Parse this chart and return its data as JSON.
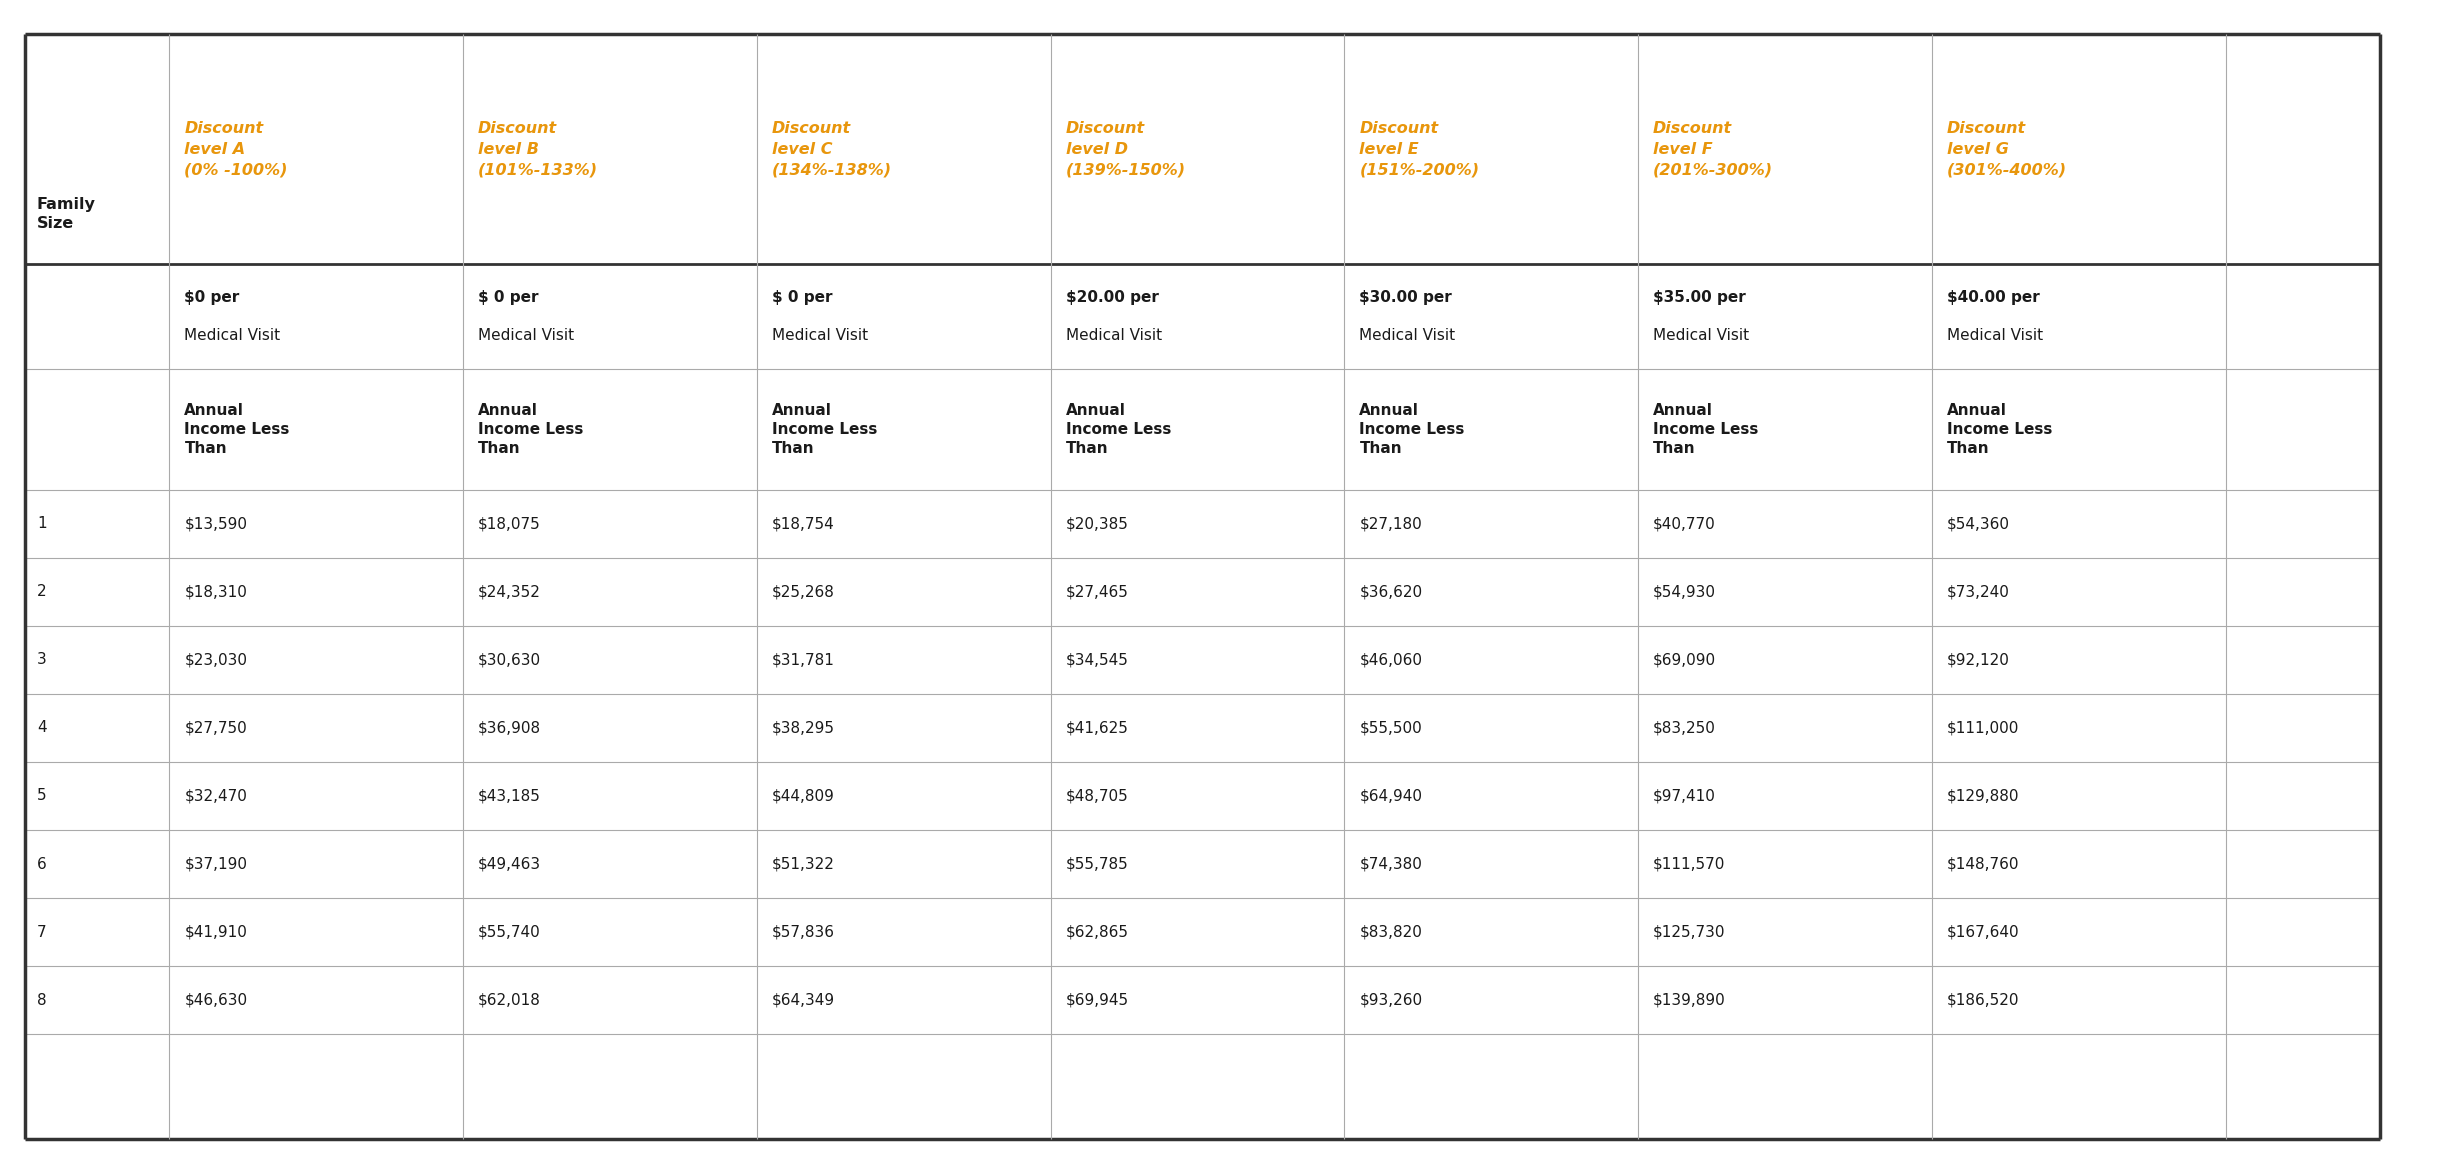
{
  "orange_color": "#E8960C",
  "black_color": "#1a1a1a",
  "white_color": "#ffffff",
  "col_headers": [
    "Discount\nlevel A\n(0% -100%)",
    "Discount\nlevel B\n(101%-133%)",
    "Discount\nlevel C\n(134%-138%)",
    "Discount\nlevel D\n(139%-150%)",
    "Discount\nlevel E\n(151%-200%)",
    "Discount\nlevel F\n(201%-300%)",
    "Discount\nlevel G\n(301%-400%)"
  ],
  "cost_line1": [
    "$0 per",
    "$ 0 per",
    "$ 0 per",
    "$20.00 per",
    "$30.00 per",
    "$35.00 per",
    "$40.00 per"
  ],
  "cost_line2": "Medical Visit",
  "income_header": "Annual\nIncome Less\nThan",
  "family_size_label": "Family\nSize",
  "rows": [
    {
      "size": "1",
      "values": [
        "$13,590",
        "$18,075",
        "$18,754",
        "$20,385",
        "$27,180",
        "$40,770",
        "$54,360"
      ]
    },
    {
      "size": "2",
      "values": [
        "$18,310",
        "$24,352",
        "$25,268",
        "$27,465",
        "$36,620",
        "$54,930",
        "$73,240"
      ]
    },
    {
      "size": "3",
      "values": [
        "$23,030",
        "$30,630",
        "$31,781",
        "$34,545",
        "$46,060",
        "$69,090",
        "$92,120"
      ]
    },
    {
      "size": "4",
      "values": [
        "$27,750",
        "$36,908",
        "$38,295",
        "$41,625",
        "$55,500",
        "$83,250",
        "$111,000"
      ]
    },
    {
      "size": "5",
      "values": [
        "$32,470",
        "$43,185",
        "$44,809",
        "$48,705",
        "$64,940",
        "$97,410",
        "$129,880"
      ]
    },
    {
      "size": "6",
      "values": [
        "$37,190",
        "$49,463",
        "$51,322",
        "$55,785",
        "$74,380",
        "$111,570",
        "$148,760"
      ]
    },
    {
      "size": "7",
      "values": [
        "$41,910",
        "$55,740",
        "$57,836",
        "$62,865",
        "$83,820",
        "$125,730",
        "$167,640"
      ]
    },
    {
      "size": "8",
      "values": [
        "$46,630",
        "$62,018",
        "$64,349",
        "$69,945",
        "$93,260",
        "$139,890",
        "$186,520"
      ]
    }
  ],
  "fig_width": 24.5,
  "fig_height": 11.64,
  "dpi": 100
}
